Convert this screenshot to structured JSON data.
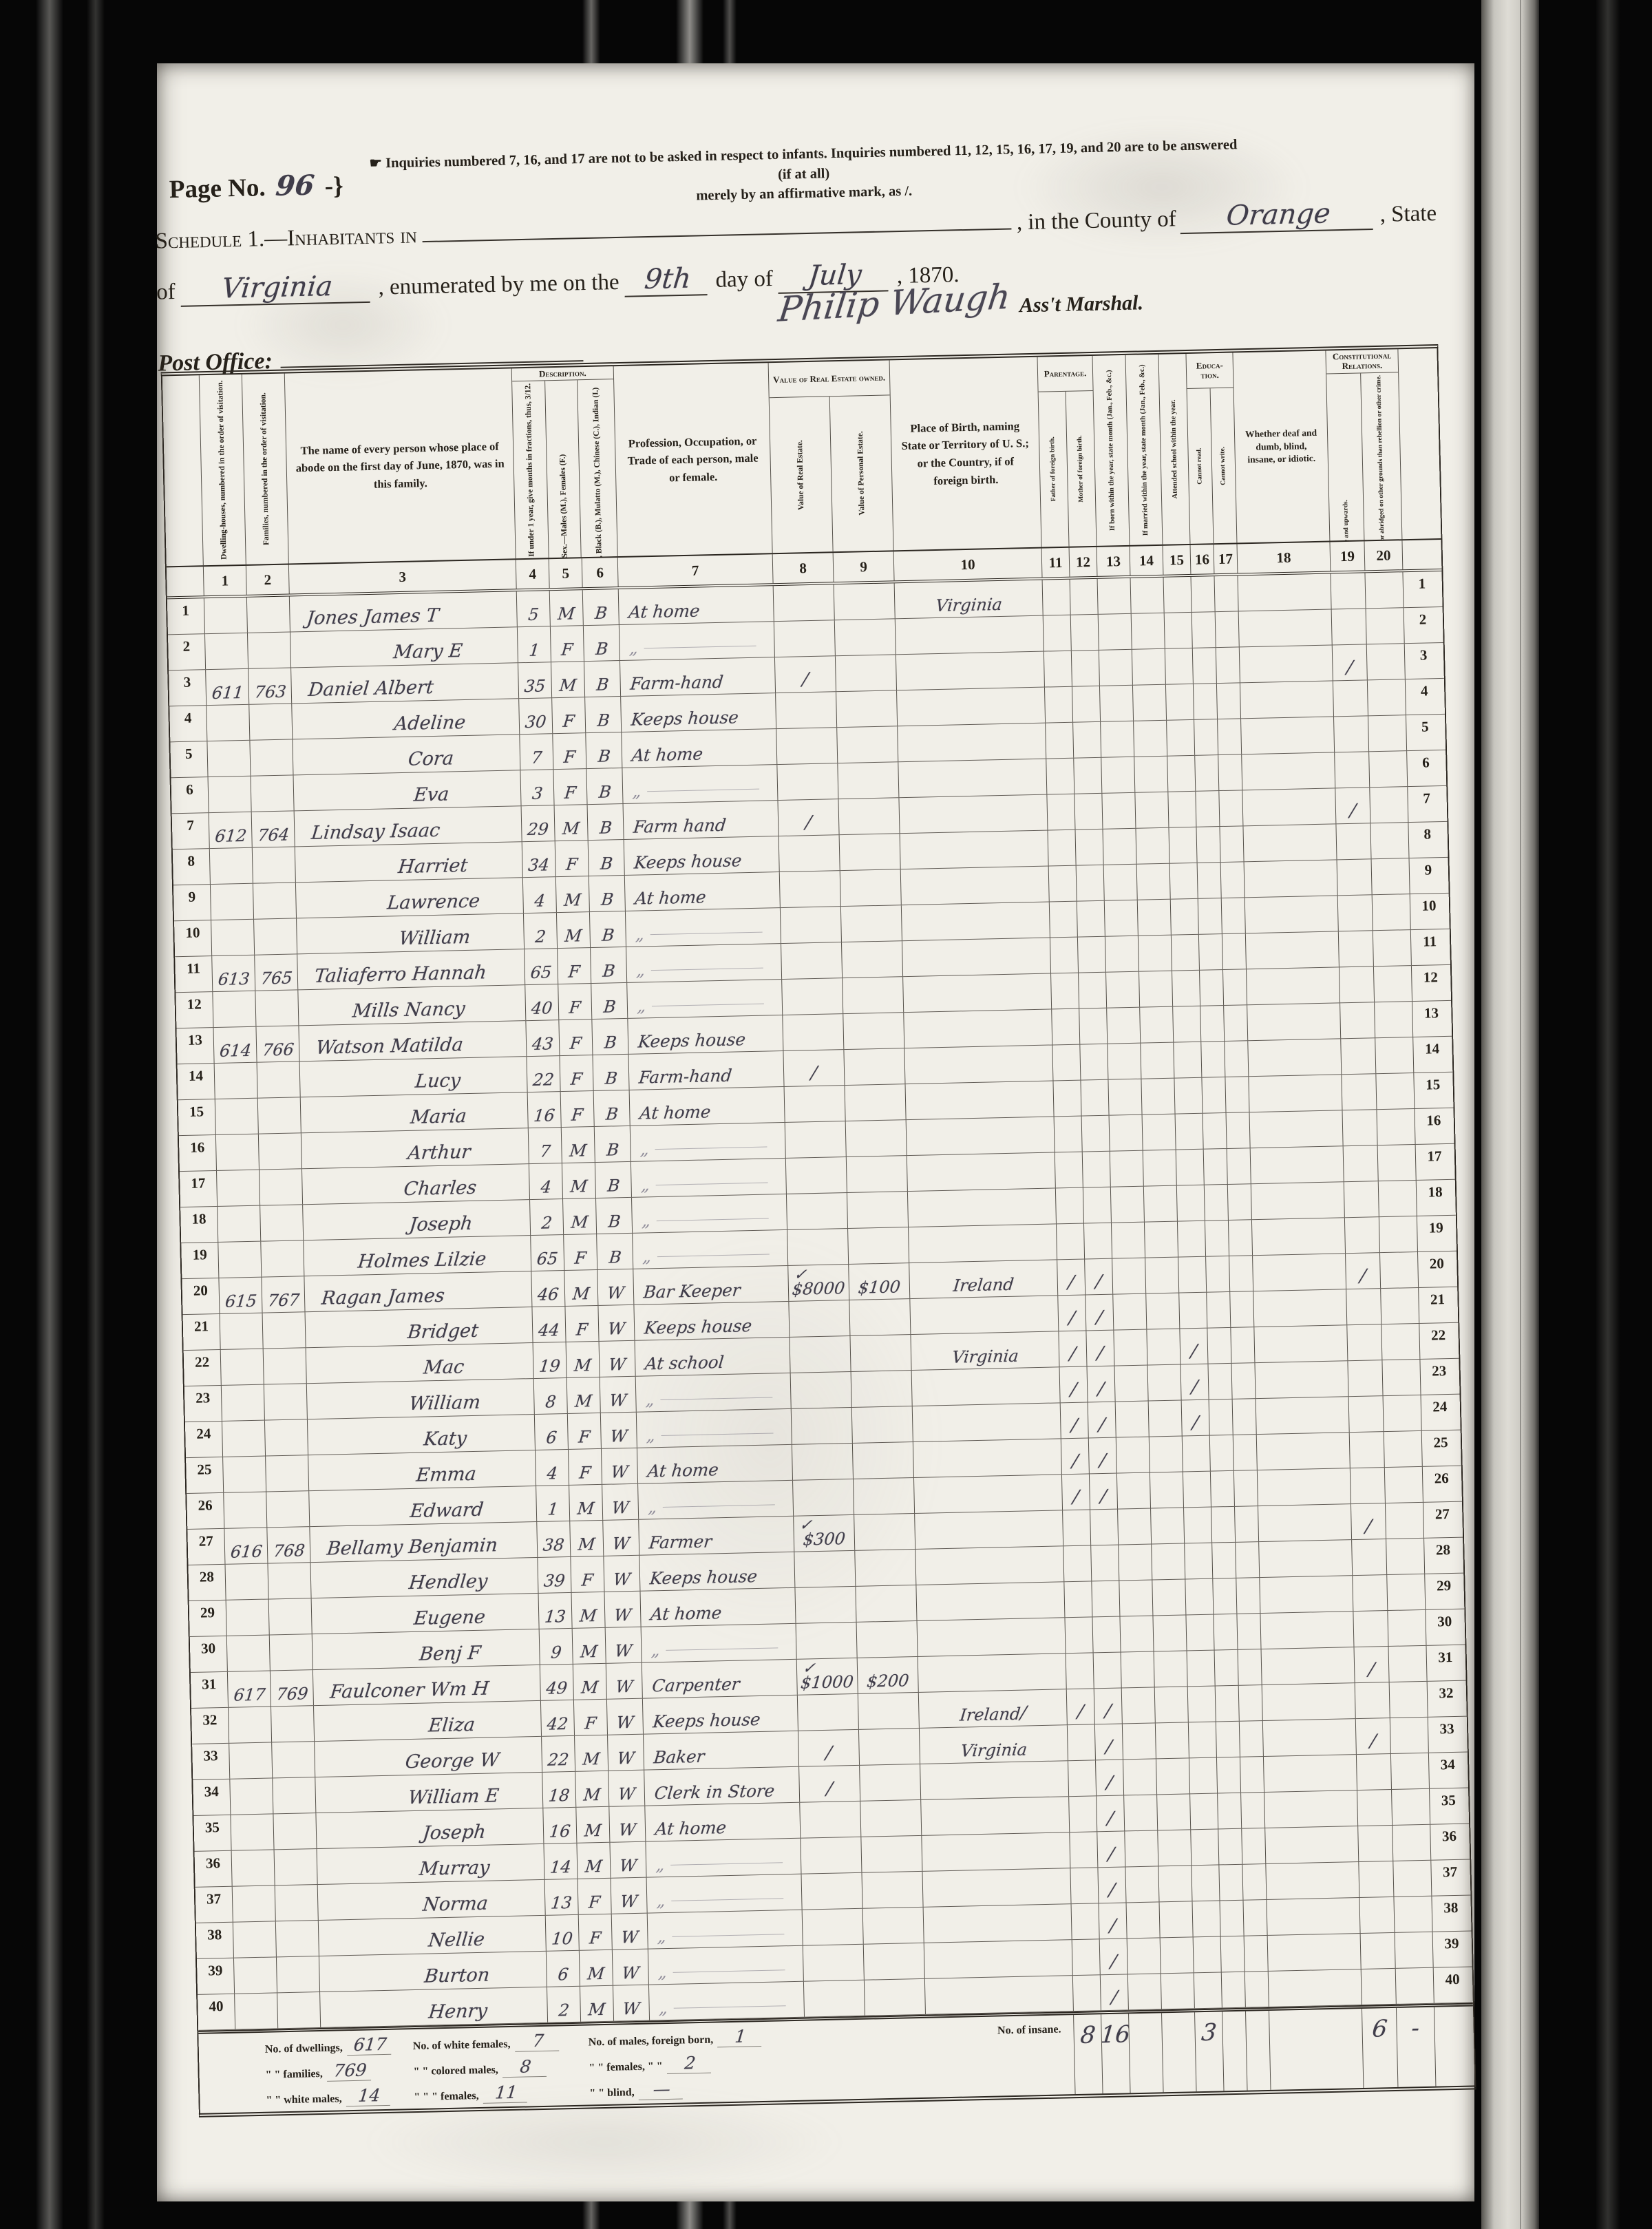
{
  "palette": {
    "film_black": "#060606",
    "paper": "#f1efe8",
    "print_ink": "#26211a",
    "hand_ink": "#403d4a",
    "faded_ink": "#8f8c99"
  },
  "page": {
    "page_no_label": "Page No.",
    "page_no_value": "96",
    "page_no_suffix": "-}",
    "manicule_icon": "☛",
    "note_line1": "Inquiries numbered 7, 16, and 17 are not to be asked in respect to infants.   Inquiries numbered 11, 12, 15, 16, 17, 19, and 20 are to be answered (if at all)",
    "note_line2": "merely by an affirmative mark, as /.",
    "schedule_label": "Schedule 1.—Inhabitants in",
    "county_label": ", in the County of",
    "county_value": "Orange",
    "state_suffix": ", State",
    "of_label": "of",
    "state_value": "Virginia",
    "enumerated_label": ", enumerated by me on the",
    "day_value": "9th",
    "day_of_label": "day of",
    "month_value": "July",
    "year_suffix": ", 1870.",
    "signature": "Philip Waugh",
    "marshal_label": "Ass't Marshal.",
    "post_office_label": "Post Office:"
  },
  "table": {
    "groups": [
      {
        "label": "Description.",
        "span": [
          4,
          6
        ]
      },
      {
        "label": "Value of Real Estate owned.",
        "span": [
          8,
          9
        ]
      },
      {
        "label": "Parentage.",
        "span": [
          11,
          12
        ]
      },
      {
        "label": "Educa- tion.",
        "span": [
          16,
          17
        ]
      },
      {
        "label": "Constitutional Relations.",
        "span": [
          19,
          20
        ]
      }
    ],
    "columns": [
      {
        "n": "1",
        "label": "Dwelling-houses, numbered in the order of visitation."
      },
      {
        "n": "2",
        "label": "Families, numbered in the order of visitation."
      },
      {
        "n": "3",
        "label": "The name of every person whose place of abode on the first day of June, 1870, was in this family."
      },
      {
        "n": "4",
        "label": "Age at last birth-day. If under 1 year, give months in fractions, thus, 3/12."
      },
      {
        "n": "5",
        "label": "Sex.—Males (M.), Females (F.)"
      },
      {
        "n": "6",
        "label": "Color.—White (W.), Black (B.), Mulatto (M.), Chinese (C.), Indian (I.)"
      },
      {
        "n": "7",
        "label": "Profession, Occupation, or Trade of each person, male or female."
      },
      {
        "n": "8",
        "label": "Value of Real Estate."
      },
      {
        "n": "9",
        "label": "Value of Personal Estate."
      },
      {
        "n": "10",
        "label": "Place of Birth, naming State or Territory of U. S.; or the Country, if of foreign birth."
      },
      {
        "n": "11",
        "label": "Father of foreign birth."
      },
      {
        "n": "12",
        "label": "Mother of foreign birth."
      },
      {
        "n": "13",
        "label": "If born within the year, state month (Jan., Feb., &c.)"
      },
      {
        "n": "14",
        "label": "If married within the year, state month (Jan., Feb., &c.)"
      },
      {
        "n": "15",
        "label": "Attended school within the year."
      },
      {
        "n": "16",
        "label": "Cannot read."
      },
      {
        "n": "17",
        "label": "Cannot write."
      },
      {
        "n": "18",
        "label": "Whether deaf and dumb, blind, insane, or idiotic."
      },
      {
        "n": "19",
        "label": "Male Citizens of U. S. of 21 years of age and upwards."
      },
      {
        "n": "20",
        "label": "Male Citizens of U. S. of 21 years of age and upwards, whose right to vote is denied or abridged on other grounds than rebellion or other crime."
      }
    ],
    "rows": [
      {
        "n": "1",
        "name": "Jones James T",
        "age": "5",
        "sex": "M",
        "col": "B",
        "occ": "At home",
        "birth": "Virginia",
        "pos": "l"
      },
      {
        "n": "2",
        "name": "Mary E",
        "age": "1",
        "sex": "F",
        "col": "B",
        "occ": "ditto",
        "pos": "c"
      },
      {
        "n": "3",
        "dw": "611",
        "fam": "763",
        "name": "Daniel Albert",
        "age": "35",
        "sex": "M",
        "col": "B",
        "occ": "Farm-hand",
        "t8": "/",
        "c19": "/",
        "pos": "l"
      },
      {
        "n": "4",
        "name": "Adeline",
        "age": "30",
        "sex": "F",
        "col": "B",
        "occ": "Keeps house",
        "pos": "c"
      },
      {
        "n": "5",
        "name": "Cora",
        "age": "7",
        "sex": "F",
        "col": "B",
        "occ": "At home",
        "pos": "c"
      },
      {
        "n": "6",
        "name": "Eva",
        "age": "3",
        "sex": "F",
        "col": "B",
        "occ": "ditto",
        "pos": "c"
      },
      {
        "n": "7",
        "dw": "612",
        "fam": "764",
        "name": "Lindsay Isaac",
        "age": "29",
        "sex": "M",
        "col": "B",
        "occ": "Farm hand",
        "t8": "/",
        "c19": "/",
        "pos": "l"
      },
      {
        "n": "8",
        "name": "Harriet",
        "age": "34",
        "sex": "F",
        "col": "B",
        "occ": "Keeps house",
        "pos": "c"
      },
      {
        "n": "9",
        "name": "Lawrence",
        "age": "4",
        "sex": "M",
        "col": "B",
        "occ": "At home",
        "pos": "c"
      },
      {
        "n": "10",
        "name": "William",
        "age": "2",
        "sex": "M",
        "col": "B",
        "occ": "ditto",
        "pos": "c"
      },
      {
        "n": "11",
        "dw": "613",
        "fam": "765",
        "name": "Taliaferro Hannah",
        "age": "65",
        "sex": "F",
        "col": "B",
        "occ": "ditto",
        "pos": "l"
      },
      {
        "n": "12",
        "name": "Mills Nancy",
        "age": "40",
        "sex": "F",
        "col": "B",
        "occ": "ditto",
        "pos": "m"
      },
      {
        "n": "13",
        "dw": "614",
        "fam": "766",
        "name": "Watson Matilda",
        "age": "43",
        "sex": "F",
        "col": "B",
        "occ": "Keeps house",
        "pos": "l"
      },
      {
        "n": "14",
        "name": "Lucy",
        "age": "22",
        "sex": "F",
        "col": "B",
        "occ": "Farm-hand",
        "t8": "/",
        "pos": "c"
      },
      {
        "n": "15",
        "name": "Maria",
        "age": "16",
        "sex": "F",
        "col": "B",
        "occ": "At home",
        "pos": "c"
      },
      {
        "n": "16",
        "name": "Arthur",
        "age": "7",
        "sex": "M",
        "col": "B",
        "occ": "ditto",
        "pos": "c"
      },
      {
        "n": "17",
        "name": "Charles",
        "age": "4",
        "sex": "M",
        "col": "B",
        "occ": "ditto",
        "pos": "c"
      },
      {
        "n": "18",
        "name": "Joseph",
        "age": "2",
        "sex": "M",
        "col": "B",
        "occ": "ditto",
        "pos": "c"
      },
      {
        "n": "19",
        "name": "Holmes Lilzie",
        "age": "65",
        "sex": "F",
        "col": "B",
        "occ": "ditto",
        "pos": "m"
      },
      {
        "n": "20",
        "dw": "615",
        "fam": "767",
        "name": "Ragan James",
        "age": "46",
        "sex": "M",
        "col": "W",
        "occ": "Bar Keeper",
        "t8": "✓",
        "re": "$8000",
        "pe": "$100",
        "birth": "Ireland",
        "c11": "/",
        "c12": "/",
        "c19": "/",
        "pos": "l"
      },
      {
        "n": "21",
        "name": "Bridget",
        "age": "44",
        "sex": "F",
        "col": "W",
        "occ": "Keeps house",
        "c11": "/",
        "c12": "/",
        "pos": "c"
      },
      {
        "n": "22",
        "name": "Mac",
        "age": "19",
        "sex": "M",
        "col": "W",
        "occ": "At school",
        "birth": "Virginia",
        "c11": "/",
        "c12": "/",
        "c15": "/",
        "pos": "c"
      },
      {
        "n": "23",
        "name": "William",
        "age": "8",
        "sex": "M",
        "col": "W",
        "occ": "ditto",
        "c11": "/",
        "c12": "/",
        "c15": "/",
        "pos": "c"
      },
      {
        "n": "24",
        "name": "Katy",
        "age": "6",
        "sex": "F",
        "col": "W",
        "occ": "ditto",
        "c11": "/",
        "c12": "/",
        "c15": "/",
        "pos": "c"
      },
      {
        "n": "25",
        "name": "Emma",
        "age": "4",
        "sex": "F",
        "col": "W",
        "occ": "At home",
        "c11": "/",
        "c12": "/",
        "pos": "c"
      },
      {
        "n": "26",
        "name": "Edward",
        "age": "1",
        "sex": "M",
        "col": "W",
        "occ": "ditto",
        "c11": "/",
        "c12": "/",
        "pos": "c"
      },
      {
        "n": "27",
        "dw": "616",
        "fam": "768",
        "name": "Bellamy Benjamin",
        "age": "38",
        "sex": "M",
        "col": "W",
        "occ": "Farmer",
        "t8": "✓",
        "re": "$300",
        "c19": "/",
        "pos": "l"
      },
      {
        "n": "28",
        "name": "Hendley",
        "age": "39",
        "sex": "F",
        "col": "W",
        "occ": "Keeps house",
        "pos": "c"
      },
      {
        "n": "29",
        "name": "Eugene",
        "age": "13",
        "sex": "M",
        "col": "W",
        "occ": "At home",
        "pos": "c"
      },
      {
        "n": "30",
        "name": "Benj F",
        "age": "9",
        "sex": "M",
        "col": "W",
        "occ": "ditto",
        "pos": "c"
      },
      {
        "n": "31",
        "dw": "617",
        "fam": "769",
        "name": "Faulconer Wm H",
        "age": "49",
        "sex": "M",
        "col": "W",
        "occ": "Carpenter",
        "t8": "✓",
        "re": "$1000",
        "pe": "$200",
        "c19": "/",
        "pos": "l"
      },
      {
        "n": "32",
        "name": "Eliza",
        "age": "42",
        "sex": "F",
        "col": "W",
        "occ": "Keeps house",
        "birth": "Ireland",
        "bt": "/",
        "c11": "/",
        "c12": "/",
        "pos": "c"
      },
      {
        "n": "33",
        "name": "George W",
        "age": "22",
        "sex": "M",
        "col": "W",
        "occ": "Baker",
        "t8": "/",
        "birth": "Virginia",
        "c12": "/",
        "c19": "/",
        "pos": "c"
      },
      {
        "n": "34",
        "name": "William E",
        "age": "18",
        "sex": "M",
        "col": "W",
        "occ": "Clerk in Store",
        "t8": "/",
        "c12": "/",
        "pos": "c"
      },
      {
        "n": "35",
        "name": "Joseph",
        "age": "16",
        "sex": "M",
        "col": "W",
        "occ": "At home",
        "c12": "/",
        "pos": "c"
      },
      {
        "n": "36",
        "name": "Murray",
        "age": "14",
        "sex": "M",
        "col": "W",
        "occ": "ditto",
        "c12": "/",
        "pos": "c"
      },
      {
        "n": "37",
        "name": "Norma",
        "age": "13",
        "sex": "F",
        "col": "W",
        "occ": "ditto",
        "c12": "/",
        "pos": "c"
      },
      {
        "n": "38",
        "name": "Nellie",
        "age": "10",
        "sex": "F",
        "col": "W",
        "occ": "ditto",
        "c12": "/",
        "pos": "c"
      },
      {
        "n": "39",
        "name": "Burton",
        "age": "6",
        "sex": "M",
        "col": "W",
        "occ": "ditto",
        "c12": "/",
        "pos": "c"
      },
      {
        "n": "40",
        "name": "Henry",
        "age": "2",
        "sex": "M",
        "col": "W",
        "occ": "ditto",
        "c12": "/",
        "pos": "c"
      }
    ],
    "footer": {
      "summary": [
        [
          {
            "label": "No. of dwellings,",
            "value": "617"
          },
          {
            "label": "No. of white females,",
            "value": "7"
          },
          {
            "label": "No. of males, foreign born,",
            "value": "1"
          }
        ],
        [
          {
            "label": "\" \" families,",
            "value": "769"
          },
          {
            "label": "\" \" colored males,",
            "value": "8"
          },
          {
            "label": "\" \" females, \" \"",
            "value": "2"
          }
        ],
        [
          {
            "label": "\" \" white males,",
            "value": "14"
          },
          {
            "label": "\" \" \" females,",
            "value": "11"
          },
          {
            "label": "\" \" blind,",
            "value": "—"
          }
        ]
      ],
      "insane_label": "No. of insane.",
      "totals": {
        "c11": "8",
        "c12": "16",
        "c15": "3",
        "c19": "6",
        "c20": "-"
      }
    }
  }
}
